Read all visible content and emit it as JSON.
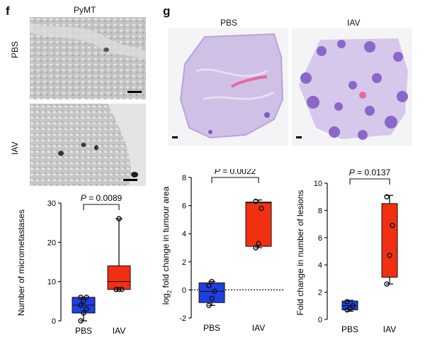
{
  "panel_f": {
    "letter": "f",
    "model": "PyMT",
    "row_labels": [
      "PBS",
      "IAV"
    ]
  },
  "panel_g": {
    "letter": "g",
    "col_labels": [
      "PBS",
      "IAV"
    ]
  },
  "colors": {
    "pbs": "#1f3fe0",
    "iav": "#f03010",
    "outline": "#111111"
  },
  "chart_data": [
    {
      "type": "box",
      "name": "micrometastases",
      "ylabel": "Number of micrometastases",
      "categories": [
        "PBS",
        "IAV"
      ],
      "ylim": [
        0,
        30
      ],
      "yticks": [
        0,
        10,
        20,
        30
      ],
      "pvalue": "0.0089",
      "boxes": [
        {
          "q1": 2,
          "median": 4,
          "q3": 6,
          "min": 0,
          "max": 6,
          "points": [
            0,
            2,
            3,
            4,
            5,
            6,
            6
          ]
        },
        {
          "q1": 8,
          "median": 10,
          "q3": 14,
          "min": 8,
          "max": 26,
          "points": [
            8,
            8,
            8,
            8,
            26
          ]
        }
      ]
    },
    {
      "type": "box",
      "name": "tumour-area",
      "ylabel_parts": [
        "log",
        "2",
        " fold change in tumour area"
      ],
      "categories": [
        "PBS",
        "IAV"
      ],
      "ylim": [
        -2,
        8
      ],
      "yticks": [
        -2,
        0,
        2,
        4,
        6,
        8
      ],
      "pvalue": "0.0022",
      "baseline": 0,
      "boxes": [
        {
          "q1": -0.9,
          "median": -0.1,
          "q3": 0.5,
          "min": -1.1,
          "max": 0.6,
          "points": [
            -1.1,
            -0.6,
            -0.1,
            0.3,
            0.6
          ]
        },
        {
          "q1": 3.1,
          "median": 6.2,
          "q3": 6.25,
          "min": 3.0,
          "max": 6.4,
          "points": [
            3.0,
            3.3,
            5.8,
            6.3
          ]
        }
      ]
    },
    {
      "type": "box",
      "name": "lesions",
      "ylabel": "Fold change in number of lesions",
      "categories": [
        "PBS",
        "IAV"
      ],
      "ylim": [
        0,
        10
      ],
      "yticks": [
        0,
        2,
        4,
        6,
        8,
        10
      ],
      "pvalue": "0.0137",
      "boxes": [
        {
          "q1": 0.7,
          "median": 1.0,
          "q3": 1.35,
          "min": 0.6,
          "max": 1.4,
          "points": [
            0.7,
            0.8,
            1.0,
            1.3
          ]
        },
        {
          "q1": 3.1,
          "median": 3.1,
          "q3": 8.5,
          "min": 2.6,
          "max": 9.1,
          "points": [
            2.6,
            4.7,
            6.9,
            9.0
          ]
        }
      ]
    }
  ]
}
